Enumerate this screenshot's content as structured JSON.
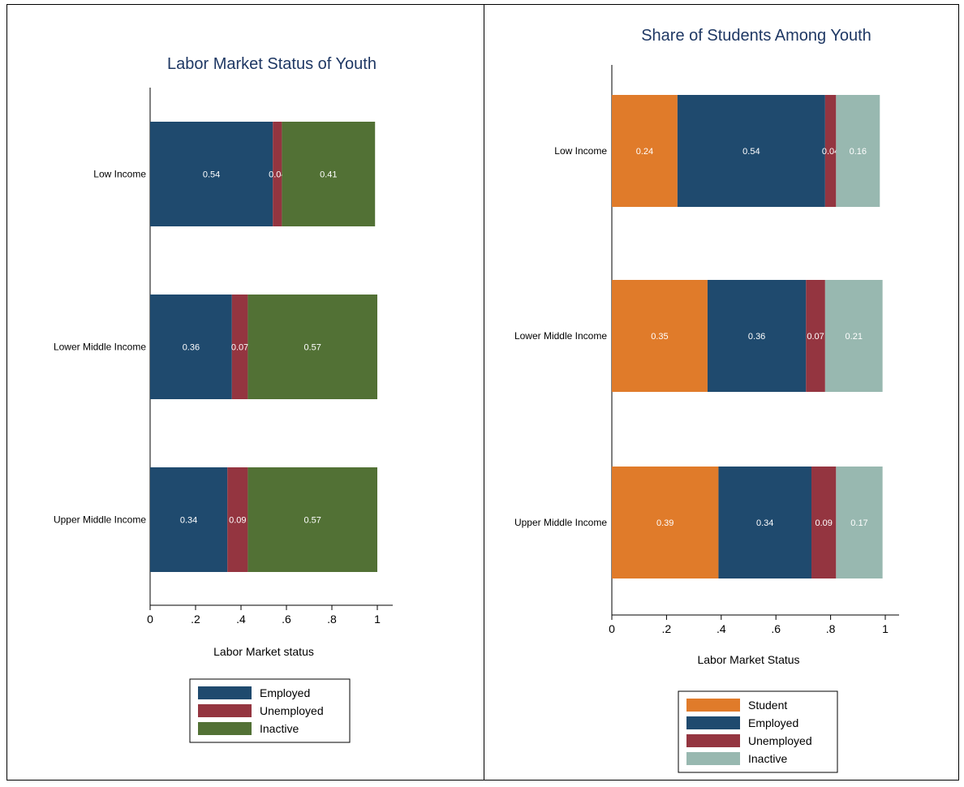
{
  "chart_data": [
    {
      "type": "bar",
      "orientation": "horizontal",
      "stacked": true,
      "title": "Labor Market Status of Youth",
      "xlabel": "Labor Market status",
      "xlim": [
        0,
        1
      ],
      "xticks": [
        "0",
        ".2",
        ".4",
        ".6",
        ".8",
        "1"
      ],
      "categories": [
        "Low Income",
        "Lower Middle Income",
        "Upper Middle Income"
      ],
      "series": [
        {
          "name": "Employed",
          "color": "#1f4a6e",
          "values": [
            0.54,
            0.36,
            0.34
          ],
          "labels": [
            "0.54",
            "0.36",
            "0.34"
          ]
        },
        {
          "name": "Unemployed",
          "color": "#943540",
          "values": [
            0.04,
            0.07,
            0.09
          ],
          "labels": [
            "0.04",
            "0.07",
            "0.09"
          ]
        },
        {
          "name": "Inactive",
          "color": "#527135",
          "values": [
            0.41,
            0.57,
            0.57
          ],
          "labels": [
            "0.41",
            "0.57",
            "0.57"
          ]
        }
      ],
      "legend_position": "bottom",
      "grid": false
    },
    {
      "type": "bar",
      "orientation": "horizontal",
      "stacked": true,
      "title": "Share of Students Among Youth",
      "xlabel": "Labor Market Status",
      "xlim": [
        0,
        1
      ],
      "xticks": [
        "0",
        ".2",
        ".4",
        ".6",
        ".8",
        "1"
      ],
      "categories": [
        "Low Income",
        "Lower Middle Income",
        "Upper Middle Income"
      ],
      "series": [
        {
          "name": "Student",
          "color": "#e07b2a",
          "values": [
            0.24,
            0.35,
            0.39
          ],
          "labels": [
            "0.24",
            "0.35",
            "0.39"
          ]
        },
        {
          "name": "Employed",
          "color": "#1f4a6e",
          "values": [
            0.54,
            0.36,
            0.34
          ],
          "labels": [
            "0.54",
            "0.36",
            "0.34"
          ]
        },
        {
          "name": "Unemployed",
          "color": "#943540",
          "values": [
            0.04,
            0.07,
            0.09
          ],
          "labels": [
            "0.04",
            "0.07",
            "0.09"
          ]
        },
        {
          "name": "Inactive",
          "color": "#98b8b0",
          "values": [
            0.16,
            0.21,
            0.17
          ],
          "labels": [
            "0.16",
            "0.21",
            "0.17"
          ]
        }
      ],
      "legend_position": "bottom",
      "grid": false
    }
  ]
}
